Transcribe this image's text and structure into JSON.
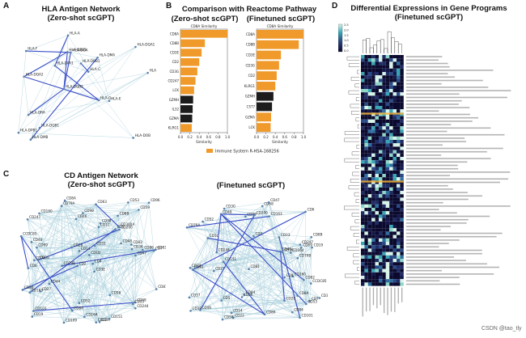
{
  "panels": {
    "A": {
      "letter": "A",
      "title_line1": "HLA Antigen Network",
      "title_line2": "(Zero-shot scGPT)",
      "nodes": [
        "HLA-DOB",
        "HLA-DQA2",
        "HLA-DQA1",
        "HLA-DQB2",
        "HLA-DMA",
        "HLA-DMB",
        "HLA-DRB5",
        "HLA-DRB1",
        "HLA-DRA",
        "HLA-DPA1",
        "HLA-DPB1",
        "HLA-DQB1",
        "HLA-DOA",
        "HLA-C",
        "HLA-E",
        "HLA-F",
        "HLA-A",
        "HLA-B",
        "HLA-G"
      ]
    },
    "B": {
      "letter": "B",
      "title": "Comparison with Reactome Pathway",
      "sub_left": "(Zero-shot scGPT)",
      "sub_right": "(Finetuned scGPT)",
      "legend": "Immune System R-HSA-168256"
    },
    "C": {
      "letter": "C",
      "title_line1": "CD Antigen Network",
      "title_line2": "(Zero-shot scGPT)",
      "title_right": "(Finetuned scGPT)",
      "nodes_left": [
        "CD8A",
        "CD8B",
        "CD7",
        "CD2",
        "CD3E",
        "CD3G",
        "CD247",
        "CD5",
        "CD6",
        "CD1C",
        "CD1D",
        "CD19",
        "CD79A",
        "CD79B",
        "CD22",
        "CD37",
        "CD52",
        "CD53",
        "CD48",
        "CD44",
        "CD69",
        "CD74",
        "CD83",
        "CD86",
        "CD80",
        "CD40",
        "CD14",
        "CD36",
        "CD68",
        "CD163",
        "CD33",
        "CD38",
        "CD27",
        "CD28",
        "CD58",
        "CD81",
        "CD82",
        "CD84",
        "CD96",
        "CD99",
        "CD101",
        "CD109",
        "CD151",
        "CD160",
        "CD164",
        "CD200",
        "CD244",
        "CD300A",
        "CCDC85",
        "CD4",
        "CD46",
        "CD47",
        "CD55",
        "CD59",
        "CD63"
      ],
      "nodes_right": [
        "CD8A",
        "CD8B",
        "CD7",
        "CD2",
        "CD3E",
        "CD3G",
        "CD247",
        "CD5",
        "CD6",
        "CD1C",
        "CD19",
        "CD79A",
        "CD79B",
        "CD22",
        "CD37",
        "CD52",
        "CD53",
        "CD48",
        "CD44",
        "CD69",
        "CD74",
        "CD83",
        "CD86",
        "CD40",
        "CD14",
        "CD36",
        "CD68",
        "CD163",
        "CD33",
        "CD38",
        "CD27",
        "CD28",
        "CD58",
        "CD81",
        "CD82",
        "CD84",
        "CD96",
        "CD99",
        "CD101",
        "CD151",
        "CD160",
        "CD164",
        "CD200",
        "CD244",
        "CCDC85",
        "CD4",
        "CD46",
        "CD47"
      ]
    },
    "D": {
      "letter": "D",
      "title_line1": "Differential Expressions in Gene Programs",
      "title_line2": "(Finetuned scGPT)",
      "cbar_ticks": [
        "2.5",
        "2.0",
        "1.5",
        "1.0",
        "0.5",
        "0.0"
      ]
    }
  },
  "chart_data": [
    {
      "type": "bar",
      "title": "CD8A Similarity",
      "xlabel": "Similarity",
      "xlim": [
        0,
        1
      ],
      "categories": [
        "CD8A",
        "CD8B",
        "CD3E",
        "CD2",
        "CD3G",
        "CD247",
        "LCK",
        "GZMH",
        "IL32",
        "GZMA",
        "KLRG1"
      ],
      "values": [
        1.0,
        0.52,
        0.45,
        0.4,
        0.36,
        0.32,
        0.29,
        0.27,
        0.26,
        0.25,
        0.24
      ],
      "highlight": [
        true,
        true,
        true,
        true,
        true,
        true,
        true,
        false,
        false,
        false,
        true
      ],
      "xticks": [
        "0.0",
        "0.2",
        "0.4",
        "0.6",
        "0.8",
        "1.0"
      ]
    },
    {
      "type": "bar",
      "title": "CD8A Similarity",
      "xlabel": "Similarity",
      "xlim": [
        0,
        1
      ],
      "categories": [
        "CD8A",
        "CD8B",
        "CD3E",
        "CD3G",
        "CD2",
        "KLRG1",
        "GZMH",
        "CST7",
        "GZMA",
        "LCK"
      ],
      "values": [
        1.0,
        0.9,
        0.52,
        0.48,
        0.43,
        0.4,
        0.36,
        0.33,
        0.31,
        0.3
      ],
      "highlight": [
        true,
        true,
        true,
        true,
        true,
        true,
        false,
        false,
        true,
        true
      ],
      "xticks": [
        "0.0",
        "0.2",
        "0.4",
        "0.6",
        "0.8",
        "1.0"
      ]
    }
  ],
  "colors": {
    "bar_highlight": "#ef9a2a",
    "bar_other": "#1c1c1c",
    "edge": "#a9cfdc",
    "edge_strong": "#3b4fc8",
    "node": "#5b7fa8"
  },
  "watermark": "CSDN @tao_tly"
}
